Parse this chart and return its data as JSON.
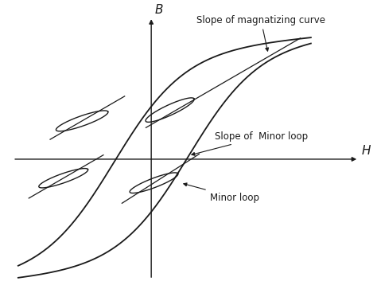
{
  "bg_color": "#ffffff",
  "line_color": "#1a1a1a",
  "title_label": "Slope of magnatizing curve",
  "h_axis_label": "H",
  "b_axis_label": "B",
  "slope_minor_label": "Slope of  Minor loop",
  "minor_loop_label": "Minor loop",
  "xlim": [
    -2.8,
    4.2
  ],
  "ylim": [
    -3.5,
    4.2
  ]
}
